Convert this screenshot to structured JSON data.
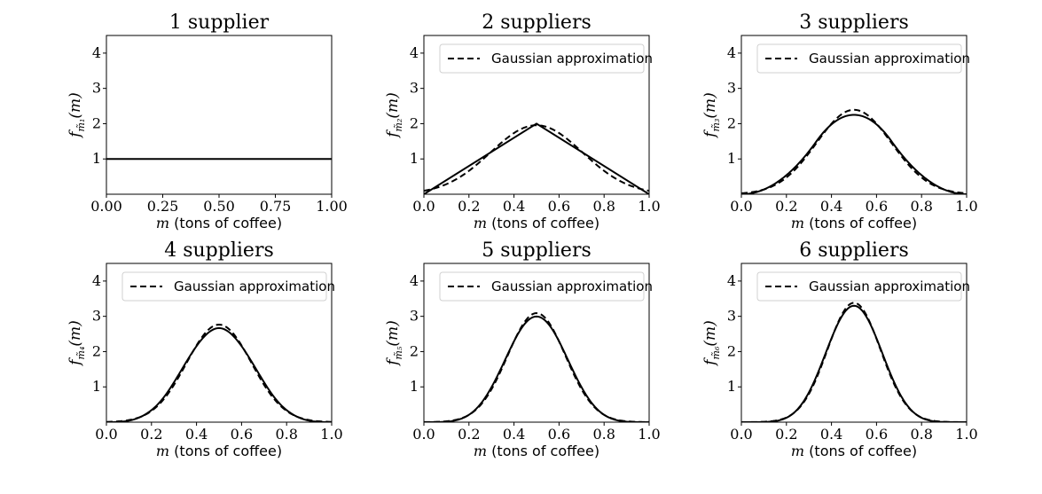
{
  "chart_data": [
    {
      "type": "line",
      "n": 1,
      "title": "1 supplier",
      "ylabel": "f_{m̃₁}(m)",
      "ylabel_main": "f",
      "ylabel_sub": "m̃₁",
      "ylabel_arg": "(m)",
      "xlabel_var": "m",
      "xlabel_text": "(tons of coffee)",
      "xlim": [
        0,
        1
      ],
      "ylim": [
        0,
        4.5
      ],
      "xticks": [
        0,
        0.25,
        0.5,
        0.75,
        1
      ],
      "xticklabels": [
        "0.00",
        "0.25",
        "0.50",
        "0.75",
        "1.00"
      ],
      "yticks": [
        1,
        2,
        3,
        4
      ],
      "yticklabels": [
        "1",
        "2",
        "3",
        "4"
      ],
      "series": [
        {
          "style": "solid",
          "color": "#000000",
          "x": [
            0,
            1
          ],
          "y": [
            1,
            1
          ]
        }
      ],
      "legend": null
    },
    {
      "type": "line",
      "n": 2,
      "title": "2 suppliers",
      "ylabel": "f_{m̃₂}(m)",
      "ylabel_main": "f",
      "ylabel_sub": "m̃₂",
      "ylabel_arg": "(m)",
      "xlabel_var": "m",
      "xlabel_text": "(tons of coffee)",
      "xlim": [
        0,
        1
      ],
      "ylim": [
        0,
        4.5
      ],
      "xticks": [
        0,
        0.2,
        0.4,
        0.6,
        0.8,
        1
      ],
      "xticklabels": [
        "0.0",
        "0.2",
        "0.4",
        "0.6",
        "0.8",
        "1.0"
      ],
      "yticks": [
        1,
        2,
        3,
        4
      ],
      "yticklabels": [
        "1",
        "2",
        "3",
        "4"
      ],
      "series": [
        {
          "style": "solid",
          "color": "#000000",
          "x": [
            0,
            0.5,
            1
          ],
          "y": [
            0,
            2,
            0
          ]
        },
        {
          "name": "Gaussian approximation",
          "style": "dashed",
          "color": "#000000",
          "gaussian_mean": 0.5,
          "gaussian_sd": 0.204
        }
      ],
      "legend": {
        "label": "Gaussian approximation",
        "position": "top"
      }
    },
    {
      "type": "line",
      "n": 3,
      "title": "3 suppliers",
      "ylabel": "f_{m̃₃}(m)",
      "ylabel_main": "f",
      "ylabel_sub": "m̃₃",
      "ylabel_arg": "(m)",
      "xlabel_var": "m",
      "xlabel_text": "(tons of coffee)",
      "xlim": [
        0,
        1
      ],
      "ylim": [
        0,
        4.5
      ],
      "xticks": [
        0,
        0.2,
        0.4,
        0.6,
        0.8,
        1
      ],
      "xticklabels": [
        "0.0",
        "0.2",
        "0.4",
        "0.6",
        "0.8",
        "1.0"
      ],
      "yticks": [
        1,
        2,
        3,
        4
      ],
      "yticklabels": [
        "1",
        "2",
        "3",
        "4"
      ],
      "series": [
        {
          "style": "solid",
          "color": "#000000",
          "irwin_hall_n": 3
        },
        {
          "name": "Gaussian approximation",
          "style": "dashed",
          "color": "#000000",
          "gaussian_mean": 0.5,
          "gaussian_sd": 0.1667
        }
      ],
      "legend": {
        "label": "Gaussian approximation",
        "position": "top"
      }
    },
    {
      "type": "line",
      "n": 4,
      "title": "4 suppliers",
      "ylabel": "f_{m̃₄}(m)",
      "ylabel_main": "f",
      "ylabel_sub": "m̃₄",
      "ylabel_arg": "(m)",
      "xlabel_var": "m",
      "xlabel_text": "(tons of coffee)",
      "xlim": [
        0,
        1
      ],
      "ylim": [
        0,
        4.5
      ],
      "xticks": [
        0,
        0.2,
        0.4,
        0.6,
        0.8,
        1
      ],
      "xticklabels": [
        "0.0",
        "0.2",
        "0.4",
        "0.6",
        "0.8",
        "1.0"
      ],
      "yticks": [
        1,
        2,
        3,
        4
      ],
      "yticklabels": [
        "1",
        "2",
        "3",
        "4"
      ],
      "series": [
        {
          "style": "solid",
          "color": "#000000",
          "irwin_hall_n": 4
        },
        {
          "name": "Gaussian approximation",
          "style": "dashed",
          "color": "#000000",
          "gaussian_mean": 0.5,
          "gaussian_sd": 0.1443
        }
      ],
      "legend": {
        "label": "Gaussian approximation",
        "position": "top"
      }
    },
    {
      "type": "line",
      "n": 5,
      "title": "5 suppliers",
      "ylabel": "f_{m̃₅}(m)",
      "ylabel_main": "f",
      "ylabel_sub": "m̃₅",
      "ylabel_arg": "(m)",
      "xlabel_var": "m",
      "xlabel_text": "(tons of coffee)",
      "xlim": [
        0,
        1
      ],
      "ylim": [
        0,
        4.5
      ],
      "xticks": [
        0,
        0.2,
        0.4,
        0.6,
        0.8,
        1
      ],
      "xticklabels": [
        "0.0",
        "0.2",
        "0.4",
        "0.6",
        "0.8",
        "1.0"
      ],
      "yticks": [
        1,
        2,
        3,
        4
      ],
      "yticklabels": [
        "1",
        "2",
        "3",
        "4"
      ],
      "series": [
        {
          "style": "solid",
          "color": "#000000",
          "irwin_hall_n": 5
        },
        {
          "name": "Gaussian approximation",
          "style": "dashed",
          "color": "#000000",
          "gaussian_mean": 0.5,
          "gaussian_sd": 0.1291
        }
      ],
      "legend": {
        "label": "Gaussian approximation",
        "position": "top"
      }
    },
    {
      "type": "line",
      "n": 6,
      "title": "6 suppliers",
      "ylabel": "f_{m̃₆}(m)",
      "ylabel_main": "f",
      "ylabel_sub": "m̃₆",
      "ylabel_arg": "(m)",
      "xlabel_var": "m",
      "xlabel_text": "(tons of coffee)",
      "xlim": [
        0,
        1
      ],
      "ylim": [
        0,
        4.5
      ],
      "xticks": [
        0,
        0.2,
        0.4,
        0.6,
        0.8,
        1
      ],
      "xticklabels": [
        "0.0",
        "0.2",
        "0.4",
        "0.6",
        "0.8",
        "1.0"
      ],
      "yticks": [
        1,
        2,
        3,
        4
      ],
      "yticklabels": [
        "1",
        "2",
        "3",
        "4"
      ],
      "series": [
        {
          "style": "solid",
          "color": "#000000",
          "irwin_hall_n": 6
        },
        {
          "name": "Gaussian approximation",
          "style": "dashed",
          "color": "#000000",
          "gaussian_mean": 0.5,
          "gaussian_sd": 0.1179
        }
      ],
      "legend": {
        "label": "Gaussian approximation",
        "position": "top"
      }
    }
  ]
}
